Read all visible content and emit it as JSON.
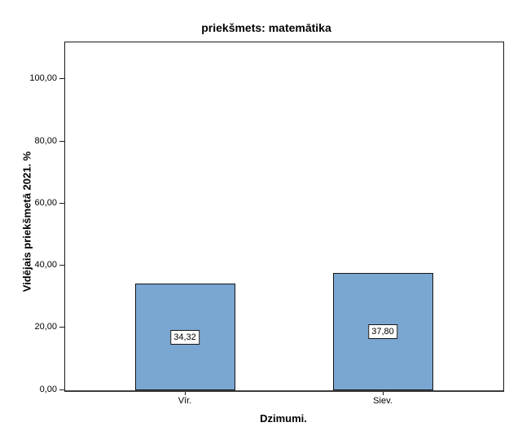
{
  "figure": {
    "background": "#FFFFFF"
  },
  "chart_data": {
    "type": "bar",
    "title": "priekšmets: matemātika",
    "xlabel": "Dzimumi.",
    "ylabel": "Vidējais priekšmetā 2021. %",
    "categories": [
      "Vīr.",
      "Siev."
    ],
    "values": [
      34.32,
      37.8
    ],
    "value_labels": [
      "34,32",
      "37,80"
    ],
    "yticks": [
      0,
      20,
      40,
      60,
      80,
      100
    ],
    "ytick_labels": [
      "0,00",
      "20,00",
      "40,00",
      "60,00",
      "80,00",
      "100,00"
    ],
    "ylim": [
      0,
      111.8
    ],
    "grid": false,
    "legend": "none",
    "colors": {
      "bar_fill": "#7AA6D2",
      "bar_border": "#151515",
      "frame": "#1A1A1A",
      "axis_line": "#3D3D3D",
      "text": "#000000"
    }
  }
}
